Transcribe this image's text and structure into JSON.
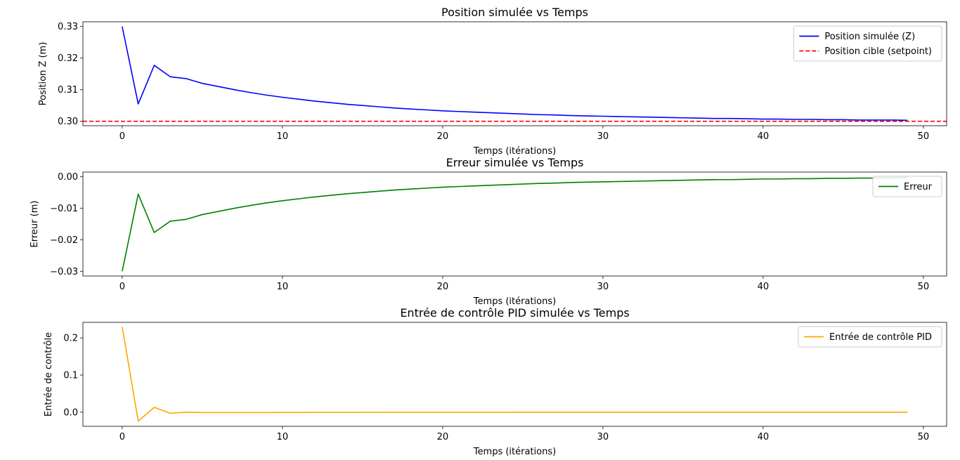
{
  "chart_data": [
    {
      "type": "line",
      "title": "Position simulée vs Temps",
      "xlabel": "Temps (itérations)",
      "ylabel": "Position Z (m)",
      "xlim": [
        -2.45,
        51.45
      ],
      "ylim": [
        0.2986,
        0.3315
      ],
      "xticks": [
        0,
        10,
        20,
        30,
        40,
        50
      ],
      "yticks": [
        0.3,
        0.31,
        0.32,
        0.33
      ],
      "ytick_labels": [
        "0.30",
        "0.31",
        "0.32",
        "0.33"
      ],
      "legend_position": "top-right",
      "series": [
        {
          "name": "Position simulée (Z)",
          "color": "#0000ff",
          "style": "solid",
          "x": [
            0,
            1,
            2,
            3,
            4,
            5,
            6,
            7,
            8,
            9,
            10,
            11,
            12,
            13,
            14,
            15,
            16,
            17,
            18,
            19,
            20,
            21,
            22,
            23,
            24,
            25,
            26,
            27,
            28,
            29,
            30,
            31,
            32,
            33,
            34,
            35,
            36,
            37,
            38,
            39,
            40,
            41,
            42,
            43,
            44,
            45,
            46,
            47,
            48,
            49
          ],
          "values": [
            0.33,
            0.3055,
            0.3177,
            0.3141,
            0.3135,
            0.312,
            0.311,
            0.31,
            0.3091,
            0.3083,
            0.3076,
            0.307,
            0.3064,
            0.3059,
            0.3054,
            0.305,
            0.3046,
            0.3042,
            0.3039,
            0.3036,
            0.3033,
            0.3031,
            0.3029,
            0.3027,
            0.3025,
            0.3023,
            0.3021,
            0.302,
            0.3018,
            0.3017,
            0.3016,
            0.3015,
            0.3014,
            0.3013,
            0.3012,
            0.3011,
            0.301,
            0.3009,
            0.3009,
            0.3008,
            0.3007,
            0.3007,
            0.3006,
            0.3006,
            0.3005,
            0.3005,
            0.3004,
            0.3004,
            0.3004,
            0.3003
          ]
        },
        {
          "name": "Position cible (setpoint)",
          "color": "#ff0000",
          "style": "dashed",
          "hline": 0.3
        }
      ]
    },
    {
      "type": "line",
      "title": "Erreur simulée vs Temps",
      "xlabel": "Temps (itérations)",
      "ylabel": "Erreur (m)",
      "xlim": [
        -2.45,
        51.45
      ],
      "ylim": [
        -0.0315,
        0.0015
      ],
      "xticks": [
        0,
        10,
        20,
        30,
        40,
        50
      ],
      "yticks": [
        -0.03,
        -0.02,
        -0.01,
        0.0
      ],
      "ytick_labels": [
        "−0.03",
        "−0.02",
        "−0.01",
        "0.00"
      ],
      "legend_position": "upper-right",
      "series": [
        {
          "name": "Erreur",
          "color": "#008000",
          "style": "solid",
          "x": [
            0,
            1,
            2,
            3,
            4,
            5,
            6,
            7,
            8,
            9,
            10,
            11,
            12,
            13,
            14,
            15,
            16,
            17,
            18,
            19,
            20,
            21,
            22,
            23,
            24,
            25,
            26,
            27,
            28,
            29,
            30,
            31,
            32,
            33,
            34,
            35,
            36,
            37,
            38,
            39,
            40,
            41,
            42,
            43,
            44,
            45,
            46,
            47,
            48,
            49
          ],
          "values": [
            -0.03,
            -0.0055,
            -0.0177,
            -0.0141,
            -0.0135,
            -0.012,
            -0.011,
            -0.01,
            -0.0091,
            -0.0083,
            -0.0076,
            -0.007,
            -0.0064,
            -0.0059,
            -0.0054,
            -0.005,
            -0.0046,
            -0.0042,
            -0.0039,
            -0.0036,
            -0.0033,
            -0.0031,
            -0.0029,
            -0.0027,
            -0.0025,
            -0.0023,
            -0.0021,
            -0.002,
            -0.0018,
            -0.0017,
            -0.0016,
            -0.0015,
            -0.0014,
            -0.0013,
            -0.0012,
            -0.0011,
            -0.001,
            -0.0009,
            -0.0009,
            -0.0008,
            -0.0007,
            -0.0007,
            -0.0006,
            -0.0006,
            -0.0005,
            -0.0005,
            -0.0004,
            -0.0004,
            -0.0004,
            -0.0003
          ]
        }
      ]
    },
    {
      "type": "line",
      "title": "Entrée de contrôle PID simulée vs Temps",
      "xlabel": "Temps (itérations)",
      "ylabel": "Entrée de contrôle",
      "xlim": [
        -2.45,
        51.45
      ],
      "ylim": [
        -0.038,
        0.242
      ],
      "xticks": [
        0,
        10,
        20,
        30,
        40,
        50
      ],
      "yticks": [
        0.0,
        0.1,
        0.2
      ],
      "ytick_labels": [
        "0.0",
        "0.1",
        "0.2"
      ],
      "legend_position": "top-right",
      "series": [
        {
          "name": "Entrée de contrôle PID",
          "color": "#ffa500",
          "style": "solid",
          "x": [
            0,
            1,
            2,
            3,
            4,
            5,
            6,
            7,
            8,
            9,
            10,
            11,
            12,
            13,
            14,
            15,
            16,
            17,
            18,
            19,
            20,
            21,
            22,
            23,
            24,
            25,
            26,
            27,
            28,
            29,
            30,
            31,
            32,
            33,
            34,
            35,
            36,
            37,
            38,
            39,
            40,
            41,
            42,
            43,
            44,
            45,
            46,
            47,
            48,
            49
          ],
          "values": [
            0.23,
            -0.024,
            0.013,
            -0.003,
            0.0,
            -0.001,
            -0.001,
            -0.001,
            -0.001,
            -0.001,
            -0.0008,
            -0.0007,
            -0.0006,
            -0.0005,
            -0.0005,
            -0.0004,
            -0.0004,
            -0.0003,
            -0.0003,
            -0.0003,
            -0.0002,
            -0.0002,
            -0.0002,
            -0.0002,
            -0.0002,
            -0.0001,
            -0.0001,
            -0.0001,
            -0.0001,
            -0.0001,
            -0.0001,
            -0.0001,
            -0.0001,
            -0.0001,
            -0.0001,
            0,
            0,
            0,
            0,
            0,
            0,
            0,
            0,
            0,
            0,
            0,
            0,
            0,
            0,
            0
          ]
        }
      ]
    }
  ]
}
